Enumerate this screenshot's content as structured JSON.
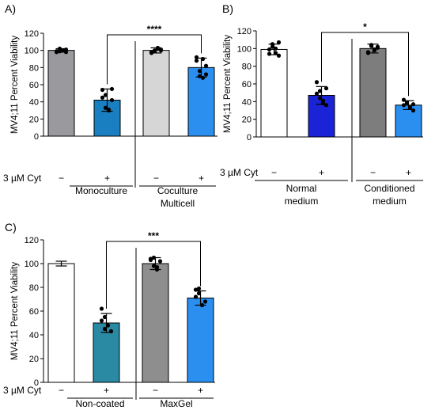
{
  "chart_data": [
    {
      "panel": "A)",
      "type": "bar",
      "ylabel": "MV4;11 Percent Viability",
      "ylim": [
        0,
        120
      ],
      "yticks": [
        "0",
        "20",
        "40",
        "60",
        "80",
        "100",
        "120"
      ],
      "cyt_label": "3 µM Cyt",
      "bars": [
        {
          "cyt": "−",
          "value": 100,
          "error": 2,
          "color": "#9a9a9e",
          "points": [
            98,
            99,
            100,
            101,
            99,
            102,
            100,
            98
          ]
        },
        {
          "cyt": "+",
          "value": 42,
          "error": 13,
          "color": "#1a7fc1",
          "points": [
            54,
            33,
            31,
            42,
            45,
            48,
            30,
            55
          ]
        },
        {
          "cyt": "−",
          "value": 100,
          "error": 3,
          "color": "#d6d6d6",
          "points": [
            97,
            100,
            103,
            101,
            98,
            99,
            102,
            100
          ]
        },
        {
          "cyt": "+",
          "value": 80,
          "error": 11,
          "color": "#2b8ff0",
          "points": [
            92,
            70,
            68,
            82,
            88,
            76,
            90,
            72
          ]
        }
      ],
      "groups": [
        {
          "label_lines": [
            "Monoculture"
          ],
          "bars": [
            0,
            1
          ]
        },
        {
          "label_lines": [
            "Coculture",
            "Multicell"
          ],
          "bars": [
            2,
            3
          ]
        }
      ],
      "significance": {
        "from": 1,
        "to": 3,
        "label": "****"
      }
    },
    {
      "panel": "B)",
      "type": "bar",
      "ylabel": "MV4;11 Percent Viability",
      "ylim": [
        0,
        120
      ],
      "yticks": [
        "0",
        "20",
        "40",
        "60",
        "80",
        "100",
        "120"
      ],
      "cyt_label": "3 µM Cyt",
      "bars": [
        {
          "cyt": "−",
          "value": 99,
          "error": 6,
          "color": "#ffffff",
          "points": [
            94,
            105,
            100,
            92,
            99,
            102,
            95,
            107
          ]
        },
        {
          "cyt": "+",
          "value": 47,
          "error": 10,
          "color": "#1a24d6",
          "points": [
            62,
            52,
            41,
            36,
            49,
            44,
            38,
            55
          ]
        },
        {
          "cyt": "−",
          "value": 100,
          "error": 5,
          "color": "#7d7d7d",
          "points": [
            96,
            104,
            99,
            101,
            95,
            103,
            98,
            102
          ]
        },
        {
          "cyt": "+",
          "value": 36,
          "error": 5,
          "color": "#2b8ff0",
          "points": [
            42,
            38,
            33,
            30,
            36,
            39,
            34,
            37
          ]
        }
      ],
      "groups": [
        {
          "label_lines": [
            "Normal",
            "medium"
          ],
          "bars": [
            0,
            1
          ]
        },
        {
          "label_lines": [
            "Conditioned",
            "medium"
          ],
          "bars": [
            2,
            3
          ]
        }
      ],
      "significance": {
        "from": 1,
        "to": 3,
        "label": "*"
      }
    },
    {
      "panel": "C)",
      "type": "bar",
      "ylabel": "MV4;11 Percent Viability",
      "ylim": [
        0,
        120
      ],
      "yticks": [
        "0",
        "20",
        "40",
        "60",
        "80",
        "100",
        "120"
      ],
      "cyt_label": "3 µM Cyt",
      "bars": [
        {
          "cyt": "−",
          "value": 100,
          "error": 2,
          "color": "#ffffff",
          "points": []
        },
        {
          "cyt": "+",
          "value": 50,
          "error": 8,
          "color": "#2a8aa3",
          "points": [
            62,
            55,
            48,
            43,
            52,
            45
          ]
        },
        {
          "cyt": "−",
          "value": 100,
          "error": 5,
          "color": "#8e8e8e",
          "points": [
            104,
            98,
            95,
            102,
            103,
            105,
            97
          ]
        },
        {
          "cyt": "+",
          "value": 71,
          "error": 6,
          "color": "#2b8ff0",
          "points": [
            78,
            75,
            65,
            68,
            72,
            79
          ]
        }
      ],
      "groups": [
        {
          "label_lines": [
            "Non-coated"
          ],
          "bars": [
            0,
            1
          ]
        },
        {
          "label_lines": [
            "MaxGel"
          ],
          "bars": [
            2,
            3
          ]
        }
      ],
      "significance": {
        "from": 1,
        "to": 3,
        "label": "***"
      }
    }
  ]
}
